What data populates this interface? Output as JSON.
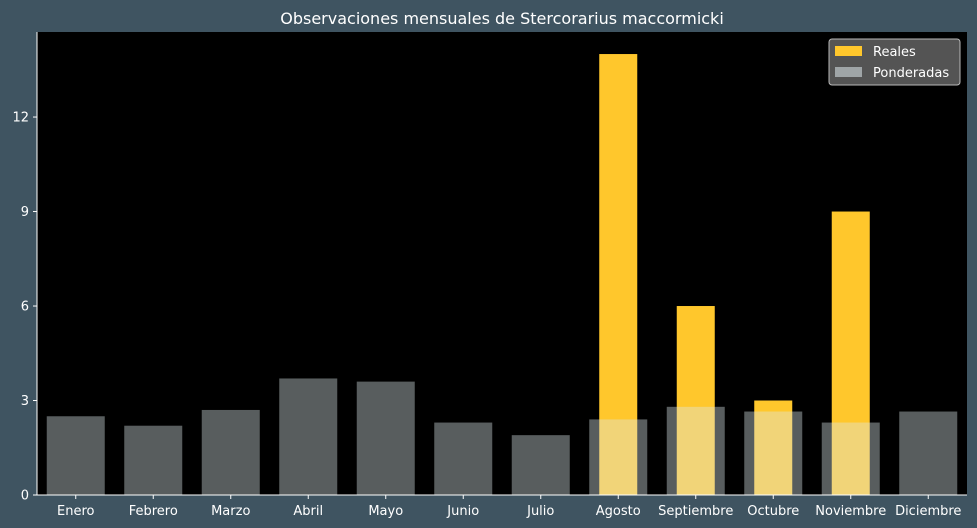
{
  "chart_data": {
    "type": "bar",
    "title": "Observaciones mensuales de Stercorarius maccormicki",
    "xlabel": "",
    "ylabel": "",
    "categories": [
      "Enero",
      "Febrero",
      "Marzo",
      "Abril",
      "Mayo",
      "Junio",
      "Julio",
      "Agosto",
      "Septiembre",
      "Octubre",
      "Noviembre",
      "Diciembre"
    ],
    "ylim": [
      0,
      14.7
    ],
    "yticks": [
      0,
      3,
      6,
      9,
      12
    ],
    "grid": false,
    "legend_position": "top-right",
    "series": [
      {
        "name": "Reales",
        "color": "#ffc72c",
        "values": [
          0,
          0,
          0,
          0,
          0,
          0,
          0,
          14,
          6,
          3,
          9,
          0
        ]
      },
      {
        "name": "Ponderadas",
        "color": "#dde8eb",
        "opacity": 0.4,
        "values": [
          2.5,
          2.2,
          2.7,
          3.7,
          3.6,
          2.3,
          1.9,
          2.4,
          2.8,
          2.65,
          2.3,
          2.65
        ]
      }
    ],
    "colors": {
      "background": "#3f5461",
      "plot_background": "#000000",
      "text": "#ffffff"
    }
  }
}
